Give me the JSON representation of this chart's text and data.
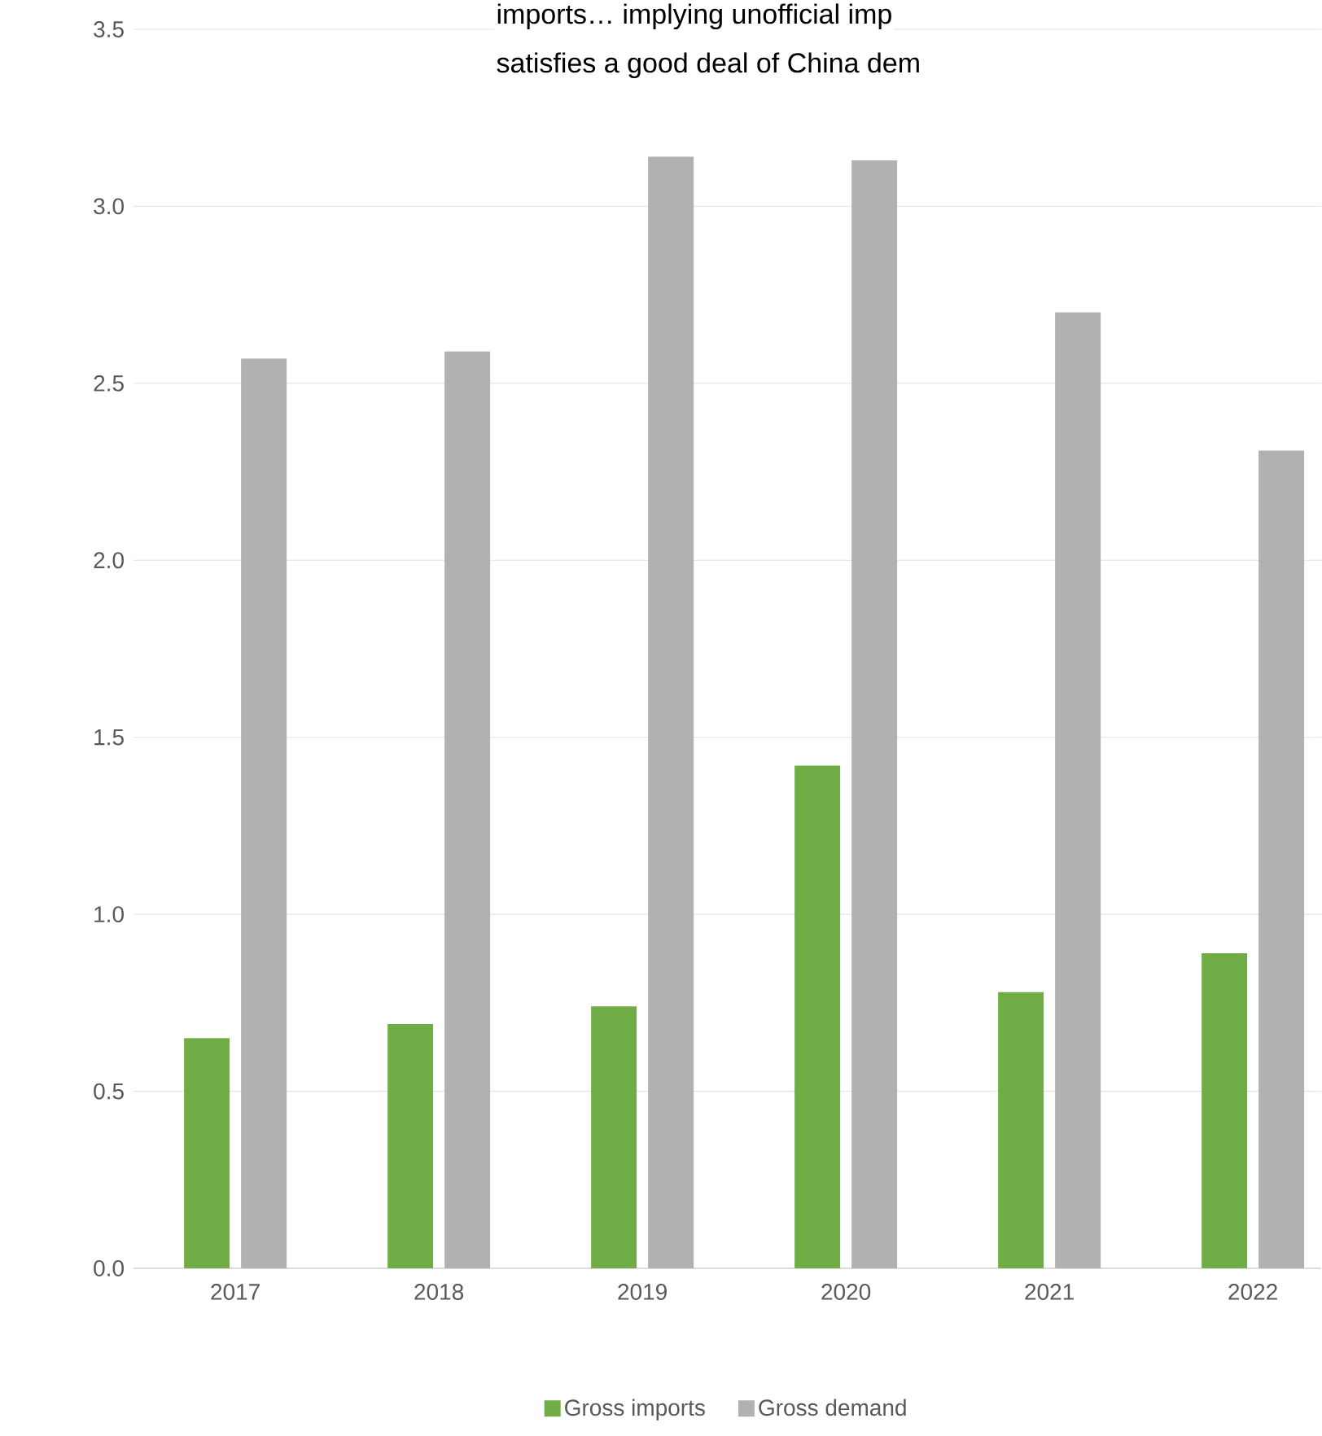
{
  "chart_data": {
    "type": "bar",
    "categories": [
      "2017",
      "2018",
      "2019",
      "2020",
      "2021",
      "2022"
    ],
    "series": [
      {
        "name": "Gross imports",
        "color": "#70ad47",
        "values": [
          0.65,
          0.69,
          0.74,
          1.42,
          0.78,
          0.89
        ]
      },
      {
        "name": "Gross demand",
        "color": "#b0b1b3",
        "values": [
          2.57,
          2.59,
          3.14,
          3.13,
          2.7,
          2.31
        ]
      }
    ],
    "ylim": [
      0,
      3.5
    ],
    "yticks": [
      {
        "value": 0,
        "label": "0.0"
      },
      {
        "value": 0.5,
        "label": "0.5"
      },
      {
        "value": 1,
        "label": "1.0"
      },
      {
        "value": 1.5,
        "label": "1.5"
      },
      {
        "value": 2,
        "label": "2.0"
      },
      {
        "value": 2.5,
        "label": "2.5"
      },
      {
        "value": 3,
        "label": "3.0"
      },
      {
        "value": 3.5,
        "label": "3.5"
      }
    ],
    "grid": "y",
    "legend": "bottom",
    "annotations": [
      "imports… implying unofficial imp",
      "satisfies a good deal of China dem"
    ]
  }
}
